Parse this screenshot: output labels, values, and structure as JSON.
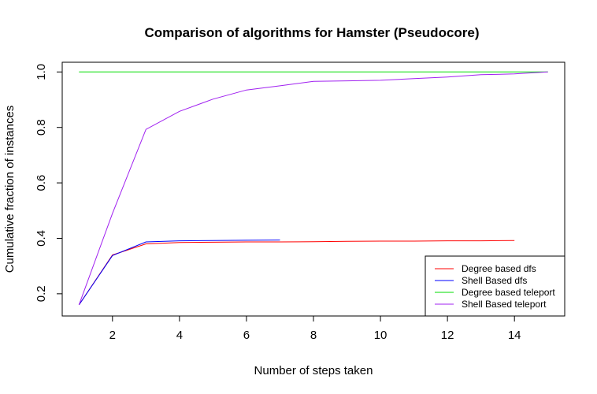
{
  "chart_data": {
    "type": "line",
    "title": "Comparison of algorithms for Hamster (Pseudocore)",
    "xlabel": "Number of steps taken",
    "ylabel": "Cumulative fraction of instances",
    "xlim": [
      0.5,
      15.5
    ],
    "ylim": [
      0.12,
      1.035
    ],
    "x_ticks": [
      2,
      4,
      6,
      8,
      10,
      12,
      14
    ],
    "y_ticks": [
      0.2,
      0.4,
      0.6,
      0.8,
      1.0
    ],
    "y_tick_labels": [
      "0.2",
      "0.4",
      "0.6",
      "0.8",
      "1.0"
    ],
    "legend_position": "bottom-right",
    "series": [
      {
        "name": "Degree based dfs",
        "color": "#ff0000",
        "x": [
          1,
          2,
          3,
          4,
          5,
          6,
          7,
          8,
          9,
          10,
          11,
          12,
          13,
          14
        ],
        "y": [
          0.16,
          0.34,
          0.38,
          0.385,
          0.386,
          0.387,
          0.387,
          0.388,
          0.389,
          0.39,
          0.39,
          0.391,
          0.391,
          0.392
        ]
      },
      {
        "name": "Shell Based dfs",
        "color": "#0000ff",
        "x": [
          1,
          2,
          3,
          4,
          5,
          6,
          7
        ],
        "y": [
          0.16,
          0.338,
          0.387,
          0.391,
          0.392,
          0.393,
          0.394
        ]
      },
      {
        "name": "Degree based teleport",
        "color": "#00dd00",
        "x": [
          1,
          15
        ],
        "y": [
          1.0,
          1.0
        ]
      },
      {
        "name": "Shell Based teleport",
        "color": "#a020f0",
        "x": [
          1,
          2,
          3,
          4,
          5,
          6,
          7,
          8,
          9,
          10,
          11,
          12,
          13,
          14,
          15
        ],
        "y": [
          0.16,
          0.49,
          0.793,
          0.858,
          0.902,
          0.935,
          0.95,
          0.966,
          0.968,
          0.97,
          0.976,
          0.982,
          0.99,
          0.993,
          1.0
        ]
      }
    ]
  }
}
